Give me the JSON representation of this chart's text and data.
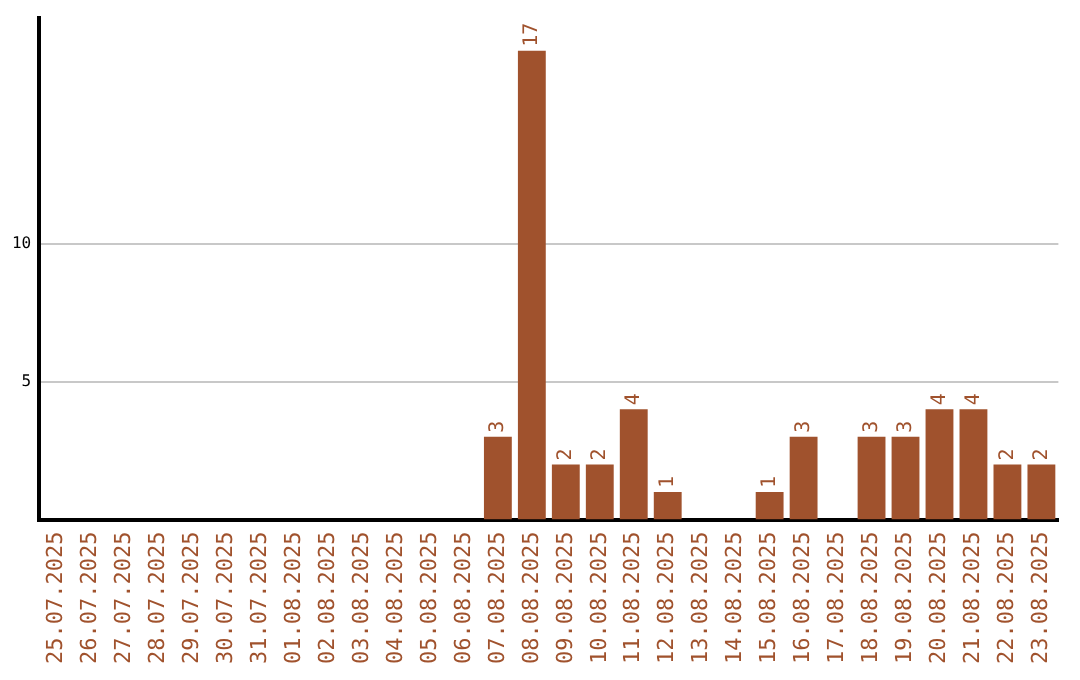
{
  "chart_data": {
    "type": "bar",
    "categories": [
      "25.07.2025",
      "26.07.2025",
      "27.07.2025",
      "28.07.2025",
      "29.07.2025",
      "30.07.2025",
      "31.07.2025",
      "01.08.2025",
      "02.08.2025",
      "03.08.2025",
      "04.08.2025",
      "05.08.2025",
      "06.08.2025",
      "07.08.2025",
      "08.08.2025",
      "09.08.2025",
      "10.08.2025",
      "11.08.2025",
      "12.08.2025",
      "13.08.2025",
      "14.08.2025",
      "15.08.2025",
      "16.08.2025",
      "17.08.2025",
      "18.08.2025",
      "19.08.2025",
      "20.08.2025",
      "21.08.2025",
      "22.08.2025",
      "23.08.2025"
    ],
    "values": [
      0,
      0,
      0,
      0,
      0,
      0,
      0,
      0,
      0,
      0,
      0,
      0,
      0,
      3,
      17,
      2,
      2,
      4,
      1,
      0,
      0,
      1,
      3,
      0,
      3,
      3,
      4,
      4,
      2,
      2
    ],
    "value_labels": [
      null,
      null,
      null,
      null,
      null,
      null,
      null,
      null,
      null,
      null,
      null,
      null,
      null,
      "3",
      "17",
      "2",
      "2",
      "4",
      "1",
      null,
      null,
      "1",
      "3",
      null,
      "3",
      "3",
      "4",
      "4",
      "2",
      "2"
    ],
    "color": "#a0522d",
    "ylim": [
      0,
      18.2
    ],
    "yticks": [
      5,
      10
    ],
    "grid": "y",
    "legend": false
  }
}
